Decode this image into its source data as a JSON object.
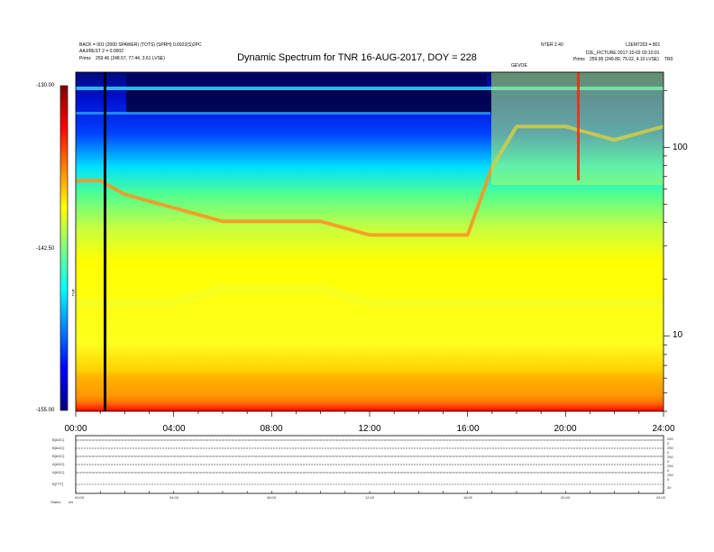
{
  "header": {
    "left_line1": "BACK = 001 (2000 SPAWER) (TOTS) (SPRH) 0.6922(S)2PC",
    "left_line2": "AAJ/REST 2 = 0.0002",
    "left_line3_label": "Prims",
    "left_line3_value": "259.46 (248.57, 77.44, 3.61 LVSE)",
    "right_line1_left": "NTER 2.40",
    "right_line1_right": "L2EM7203 = 801",
    "right_line2": "D3L_FICTURE 2017-10-02 03:10:01",
    "right_line3_label": "Prims",
    "right_line3_value": "259.95 (249.89, 75.02, 4.10 LVSE)",
    "sub_marker": "GEVOE",
    "corner": "TR0"
  },
  "chart_data": {
    "type": "heatmap",
    "title": "Dynamic Spectrum for TNR 16-AUG-2017, DOY = 228",
    "x_ticks": [
      "00:00",
      "04:00",
      "08:00",
      "12:00",
      "16:00",
      "20:00",
      "24:00"
    ],
    "x_range_hours": [
      0,
      24
    ],
    "y_scale": "log",
    "y_ticks": [
      "100",
      "10"
    ],
    "y_tick_values": [
      100,
      10
    ],
    "y_range": [
      4,
      250
    ],
    "colorbar": {
      "ticks": [
        "-130.00",
        "-142.50",
        "-155.00"
      ],
      "range": [
        -155,
        -130
      ],
      "label": "TNR",
      "colors": [
        "#000080",
        "#0000ff",
        "#0080ff",
        "#00ffff",
        "#80ff80",
        "#ffff00",
        "#ff8000",
        "#ff0000",
        "#800000"
      ]
    },
    "bands": [
      {
        "name": "upper",
        "values": [
          [
            0,
            -138
          ],
          [
            1,
            -138
          ],
          [
            2,
            -139
          ],
          [
            4,
            -140
          ],
          [
            6,
            -141
          ],
          [
            8,
            -141
          ],
          [
            10,
            -141
          ],
          [
            12,
            -142
          ],
          [
            14,
            -142
          ],
          [
            16,
            -142
          ],
          [
            17,
            -137
          ],
          [
            18,
            -134
          ],
          [
            20,
            -134
          ],
          [
            22,
            -135
          ],
          [
            24,
            -134
          ]
        ]
      },
      {
        "name": "lower",
        "values": [
          [
            0,
            -147
          ],
          [
            2,
            -147
          ],
          [
            4,
            -147
          ],
          [
            6,
            -146
          ],
          [
            8,
            -146
          ],
          [
            10,
            -146
          ],
          [
            12,
            -147
          ],
          [
            14,
            -147
          ],
          [
            16,
            -147
          ],
          [
            18,
            -147
          ],
          [
            20,
            -147
          ],
          [
            22,
            -147
          ],
          [
            24,
            -147
          ]
        ]
      }
    ]
  },
  "sub_panel": {
    "rows": [
      {
        "label": "B[ADC]",
        "right": "250"
      },
      {
        "label": "B[ADC]",
        "right": "250"
      },
      {
        "label": "B[ADC]",
        "right": "250"
      },
      {
        "label": "A[ADC]",
        "right": "250"
      },
      {
        "label": "A[ADC]",
        "right": "250"
      },
      {
        "label": "B[TTT]",
        "right": "30"
      }
    ],
    "right_extra": [
      "0",
      "0",
      "0",
      "0",
      "0"
    ],
    "x_ticks": [
      "00:00",
      "04:00",
      "08:00",
      "12:00",
      "16:00",
      "20:00",
      "24:00"
    ],
    "footer_label": "Status",
    "footer_value": "s/s"
  }
}
